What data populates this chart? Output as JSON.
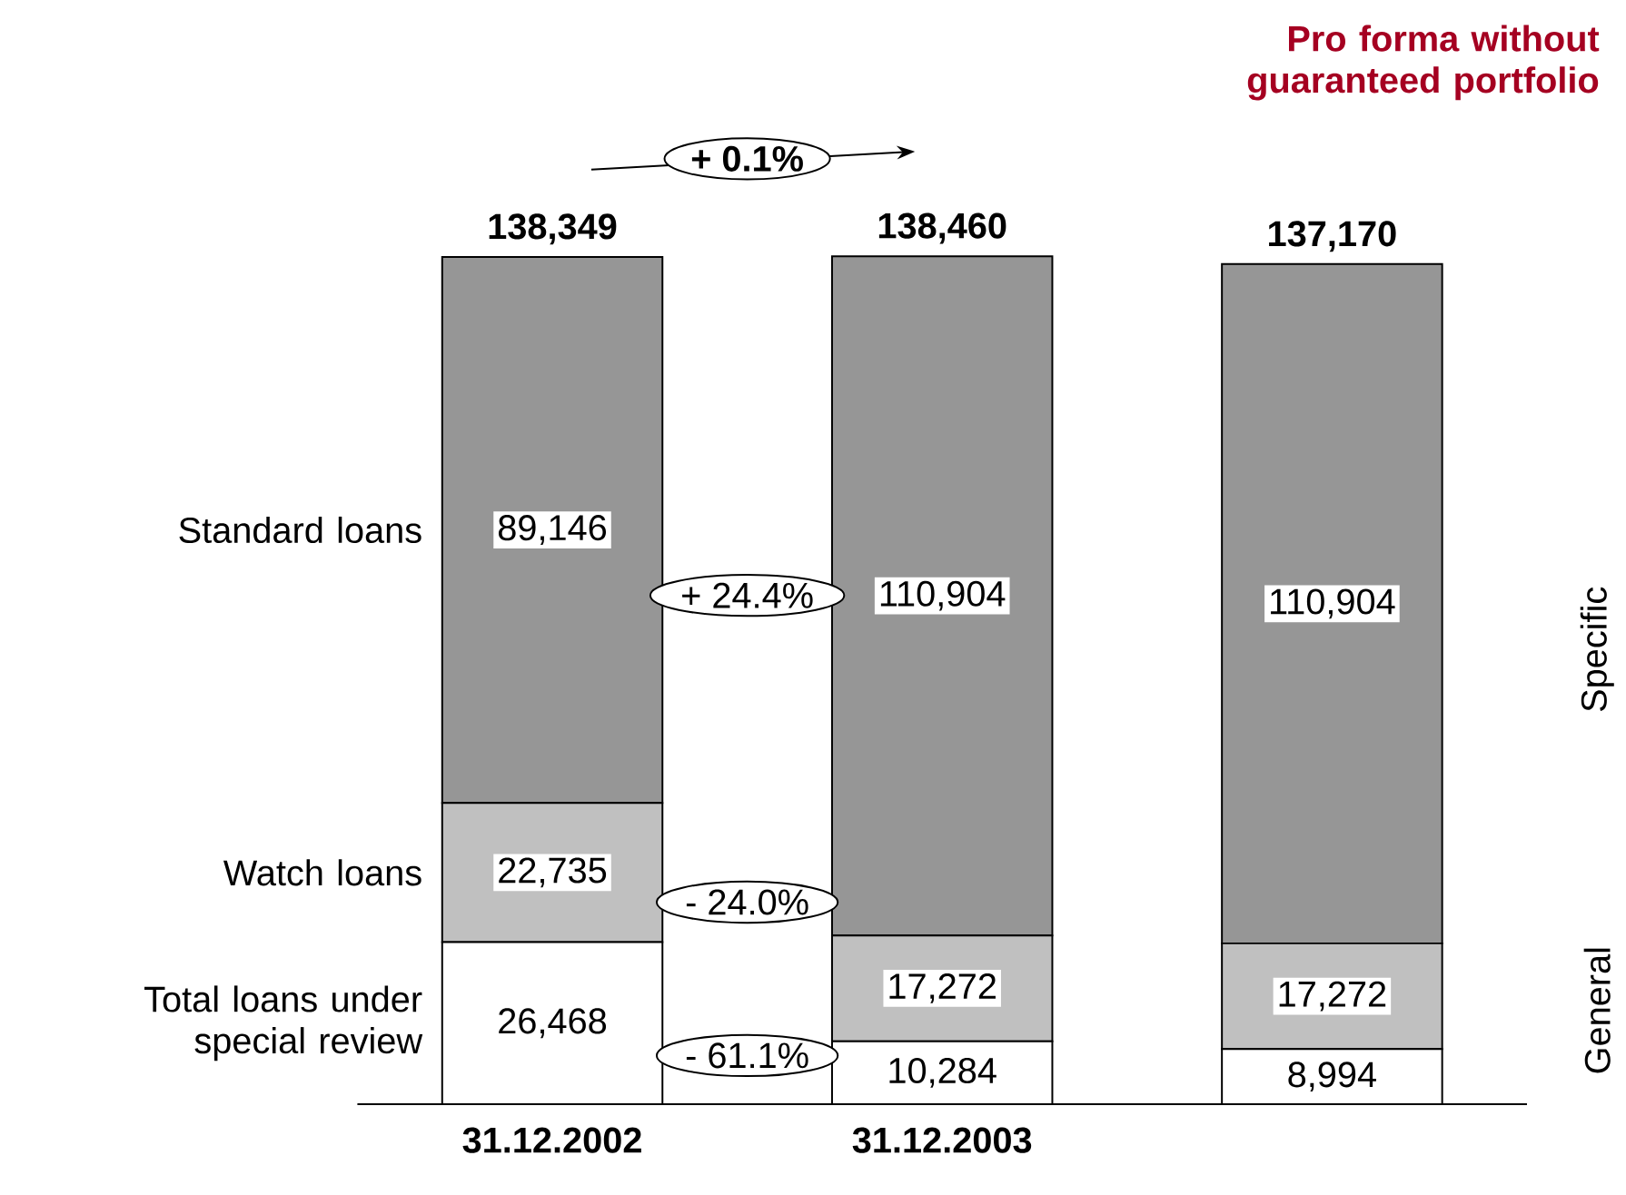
{
  "chart_data": {
    "type": "bar",
    "stacked": true,
    "title": "Pro forma without guaranteed portfolio",
    "categories": [
      "31.12.2002",
      "31.12.2003",
      null
    ],
    "series": [
      {
        "name": "Total loans under special review",
        "color": "#ffffff",
        "values": [
          26468,
          10284,
          8994
        ],
        "value_labels": [
          "26,468",
          "10,284",
          "8,994"
        ]
      },
      {
        "name": "Watch loans",
        "color": "#c0c0c0",
        "values": [
          22735,
          17272,
          17272
        ],
        "value_labels": [
          "22,735",
          "17,272",
          "17,272"
        ]
      },
      {
        "name": "Standard loans",
        "color": "#969696",
        "values": [
          89146,
          110904,
          110904
        ],
        "value_labels": [
          "89,146",
          "110,904",
          "110,904"
        ]
      }
    ],
    "totals": [
      "138,349",
      "138,460",
      "137,170"
    ],
    "annotations": [
      "+ 0.1%",
      "+ 24.4%",
      "- 24.0%",
      "- 61.1%",
      "Specific",
      "General"
    ]
  }
}
